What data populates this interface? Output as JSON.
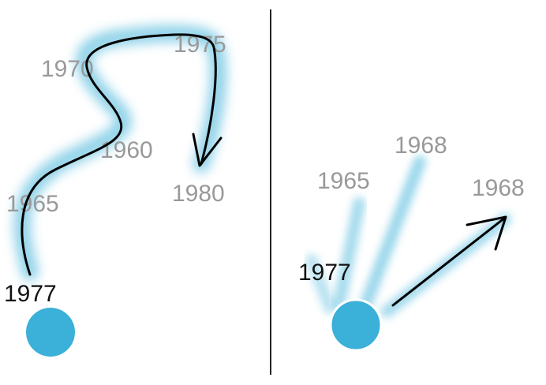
{
  "colors": {
    "trail": "#3bb0d8",
    "dot": "#3bb0d8",
    "arrow": "#000000",
    "divider": "#222222",
    "faded_label": "#999999",
    "current_label": "#111111"
  },
  "left_panel": {
    "current_year": "1977",
    "trail_years": [
      "1965",
      "1960",
      "1970",
      "1975",
      "1980"
    ]
  },
  "right_panel": {
    "current_year": "1977",
    "ray_years": [
      "1965",
      "1968",
      "1968"
    ]
  }
}
